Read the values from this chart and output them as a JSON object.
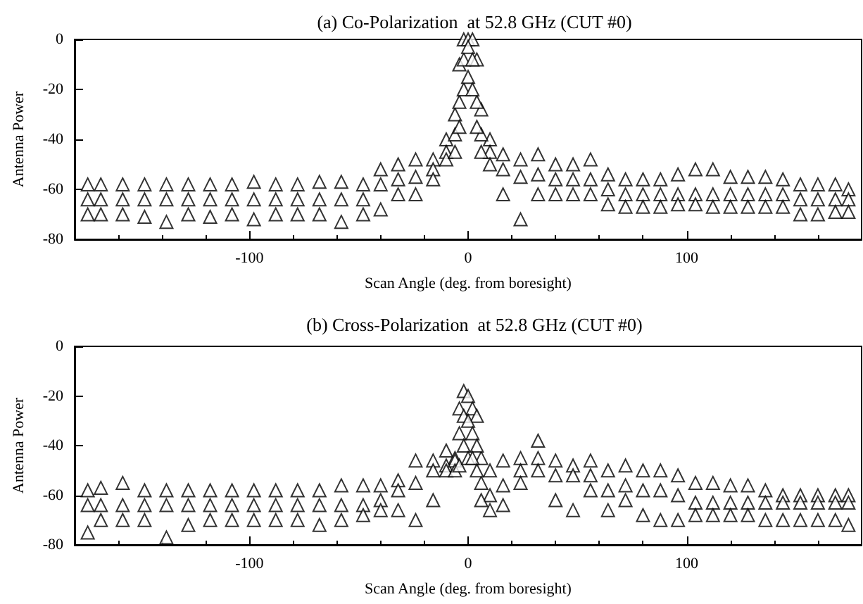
{
  "chart_data": [
    {
      "type": "scatter",
      "title": "(a) Co-Polarization  at 52.8 GHz (CUT #0)",
      "xlabel": "Scan Angle (deg. from boresight)",
      "ylabel": "Antenna Power",
      "marker": "triangle",
      "xlim": [
        -180,
        180
      ],
      "xticks": [
        -100,
        0,
        100
      ],
      "ylim": [
        -80,
        0
      ],
      "yticks": [
        -80,
        -60,
        -40,
        -20,
        0
      ],
      "x": [
        -174,
        -168,
        -158,
        -148,
        -138,
        -128,
        -118,
        -108,
        -98,
        -88,
        -78,
        -68,
        -58,
        -48,
        -40,
        -32,
        -24,
        -16,
        -10,
        -6,
        -4,
        -2,
        0,
        2,
        4,
        6,
        10,
        16,
        24,
        32,
        40,
        48,
        56,
        64,
        72,
        80,
        88,
        96,
        104,
        112,
        120,
        128,
        136,
        144,
        152,
        160,
        168,
        174
      ],
      "series": [
        {
          "color": "#000000",
          "values": [
            -58,
            -58,
            -58,
            -58,
            -58,
            -58,
            -58,
            -58,
            -57,
            -58,
            -58,
            -57,
            -57,
            -58,
            -52,
            -50,
            -48,
            -48,
            -40,
            -30,
            -10,
            0,
            0,
            0,
            -8,
            -28,
            -40,
            -46,
            -48,
            -46,
            -50,
            -50,
            -48,
            -54,
            -56,
            -56,
            -56,
            -54,
            -52,
            -52,
            -55,
            -55,
            -55,
            -56,
            -58,
            -58,
            -58,
            -60
          ]
        },
        {
          "color": "#000000",
          "values": [
            -64,
            -64,
            -64,
            -64,
            -64,
            -64,
            -64,
            -64,
            -64,
            -64,
            -64,
            -64,
            -64,
            -64,
            -58,
            -56,
            -55,
            -52,
            -45,
            -38,
            -25,
            -8,
            -3,
            -8,
            -25,
            -38,
            -45,
            -52,
            -55,
            -54,
            -56,
            -56,
            -56,
            -60,
            -62,
            -62,
            -62,
            -62,
            -62,
            -62,
            -62,
            -62,
            -62,
            -62,
            -64,
            -64,
            -64,
            -64
          ]
        },
        {
          "color": "#000000",
          "values": [
            -70,
            -70,
            -70,
            -71,
            -73,
            -70,
            -71,
            -70,
            -72,
            -70,
            -70,
            -70,
            -73,
            -70,
            -68,
            -62,
            -62,
            -56,
            -48,
            -45,
            -35,
            -20,
            -15,
            -20,
            -35,
            -45,
            -50,
            -62,
            -72,
            -62,
            -62,
            -62,
            -62,
            -66,
            -67,
            -67,
            -67,
            -66,
            -66,
            -67,
            -67,
            -67,
            -67,
            -67,
            -70,
            -70,
            -69,
            -69
          ]
        }
      ]
    },
    {
      "type": "scatter",
      "title": "(b) Cross-Polarization  at 52.8 GHz (CUT #0)",
      "xlabel": "Scan Angle (deg. from boresight)",
      "ylabel": "Antenna Power",
      "marker": "triangle",
      "xlim": [
        -180,
        180
      ],
      "xticks": [
        -100,
        0,
        100
      ],
      "ylim": [
        -80,
        0
      ],
      "yticks": [
        -80,
        -60,
        -40,
        -20,
        0
      ],
      "x": [
        -174,
        -168,
        -158,
        -148,
        -138,
        -128,
        -118,
        -108,
        -98,
        -88,
        -78,
        -68,
        -58,
        -48,
        -40,
        -32,
        -24,
        -16,
        -10,
        -6,
        -4,
        -2,
        0,
        2,
        4,
        6,
        10,
        16,
        24,
        32,
        40,
        48,
        56,
        64,
        72,
        80,
        88,
        96,
        104,
        112,
        120,
        128,
        136,
        144,
        152,
        160,
        168,
        174
      ],
      "series": [
        {
          "color": "#000000",
          "values": [
            -58,
            -57,
            -55,
            -58,
            -58,
            -58,
            -58,
            -58,
            -58,
            -58,
            -58,
            -58,
            -56,
            -56,
            -56,
            -54,
            -46,
            -46,
            -42,
            -45,
            -25,
            -18,
            -20,
            -25,
            -28,
            -45,
            -50,
            -46,
            -45,
            -38,
            -46,
            -48,
            -46,
            -50,
            -48,
            -50,
            -50,
            -52,
            -55,
            -55,
            -56,
            -56,
            -58,
            -60,
            -60,
            -60,
            -60,
            -60
          ]
        },
        {
          "color": "#000000",
          "values": [
            -64,
            -64,
            -64,
            -64,
            -64,
            -64,
            -64,
            -64,
            -64,
            -64,
            -64,
            -64,
            -64,
            -64,
            -62,
            -58,
            -55,
            -50,
            -48,
            -46,
            -35,
            -28,
            -30,
            -35,
            -40,
            -55,
            -60,
            -56,
            -50,
            -45,
            -52,
            -52,
            -52,
            -58,
            -56,
            -58,
            -58,
            -60,
            -63,
            -63,
            -63,
            -63,
            -63,
            -63,
            -63,
            -63,
            -63,
            -63
          ]
        },
        {
          "color": "#000000",
          "values": [
            -75,
            -70,
            -70,
            -70,
            -77,
            -72,
            -70,
            -70,
            -70,
            -70,
            -70,
            -72,
            -70,
            -68,
            -66,
            -66,
            -70,
            -62,
            -50,
            -50,
            -48,
            -40,
            -45,
            -45,
            -50,
            -62,
            -66,
            -64,
            -55,
            -50,
            -62,
            -66,
            -58,
            -66,
            -62,
            -68,
            -70,
            -70,
            -68,
            -68,
            -68,
            -68,
            -70,
            -70,
            -70,
            -70,
            -70,
            -72
          ]
        }
      ]
    }
  ]
}
